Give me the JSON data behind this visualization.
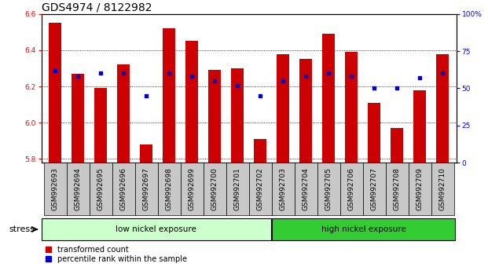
{
  "title": "GDS4974 / 8122982",
  "samples": [
    "GSM992693",
    "GSM992694",
    "GSM992695",
    "GSM992696",
    "GSM992697",
    "GSM992698",
    "GSM992699",
    "GSM992700",
    "GSM992701",
    "GSM992702",
    "GSM992703",
    "GSM992704",
    "GSM992705",
    "GSM992706",
    "GSM992707",
    "GSM992708",
    "GSM992709",
    "GSM992710"
  ],
  "bar_values": [
    6.55,
    6.27,
    6.19,
    6.32,
    5.88,
    6.52,
    6.45,
    6.29,
    6.3,
    5.91,
    6.38,
    6.35,
    6.49,
    6.39,
    6.11,
    5.97,
    6.18,
    6.38
  ],
  "dot_percentiles": [
    62,
    58,
    60,
    60,
    45,
    60,
    58,
    55,
    52,
    45,
    55,
    58,
    60,
    58,
    50,
    50,
    57,
    60
  ],
  "ylim_left": [
    5.78,
    6.6
  ],
  "ylim_right": [
    0,
    100
  ],
  "yticks_left": [
    5.8,
    6.0,
    6.2,
    6.4,
    6.6
  ],
  "yticks_right": [
    0,
    25,
    50,
    75,
    100
  ],
  "bar_color": "#cc0000",
  "dot_color": "#0000cc",
  "bar_bottom": 5.78,
  "groups": [
    {
      "label": "low nickel exposure",
      "start": 0,
      "end": 9,
      "color": "#ccffcc"
    },
    {
      "label": "high nickel exposure",
      "start": 10,
      "end": 17,
      "color": "#33cc33"
    }
  ],
  "group_label": "stress",
  "legend_bar_label": "transformed count",
  "legend_dot_label": "percentile rank within the sample",
  "xlabel_bg_color": "#c8c8c8",
  "title_fontsize": 10,
  "tick_label_fontsize": 6.5,
  "bar_width": 0.55
}
